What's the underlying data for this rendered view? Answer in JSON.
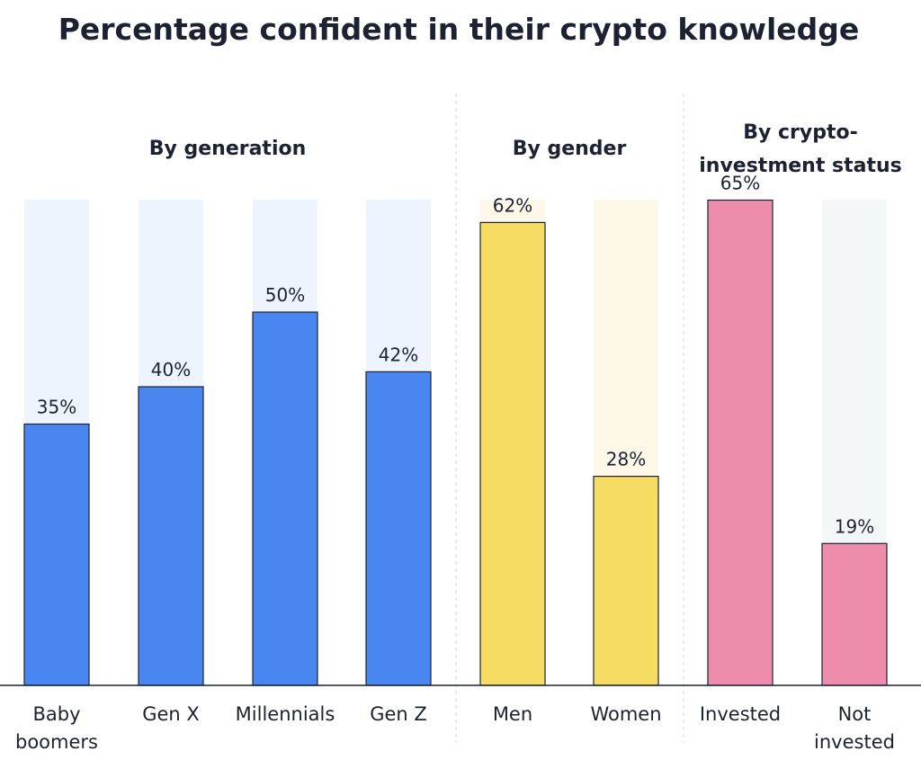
{
  "chart_data": {
    "type": "bar",
    "title": "Percentage confident in their crypto knowledge",
    "ylim": [
      0,
      100
    ],
    "unit": "%",
    "groups": [
      {
        "label_lines": [
          "By generation"
        ],
        "color": "#4a86ef",
        "track_color": "#eef4fd",
        "categories": [
          {
            "label_lines": [
              "Baby",
              "boomers"
            ],
            "value": 35
          },
          {
            "label_lines": [
              "Gen X"
            ],
            "value": 40
          },
          {
            "label_lines": [
              "Millennials"
            ],
            "value": 50
          },
          {
            "label_lines": [
              "Gen Z"
            ],
            "value": 42
          }
        ]
      },
      {
        "label_lines": [
          "By gender"
        ],
        "color": "#f7dc63",
        "track_color": "#fdf8e8",
        "categories": [
          {
            "label_lines": [
              "Men"
            ],
            "value": 62
          },
          {
            "label_lines": [
              "Women"
            ],
            "value": 28
          }
        ]
      },
      {
        "label_lines": [
          "By crypto-",
          "investment status"
        ],
        "color": "#ee8cac",
        "track_color": "#f4f7f8",
        "categories": [
          {
            "label_lines": [
              "Invested"
            ],
            "value": 65
          },
          {
            "label_lines": [
              "Not",
              "invested"
            ],
            "value": 19
          }
        ]
      }
    ]
  }
}
